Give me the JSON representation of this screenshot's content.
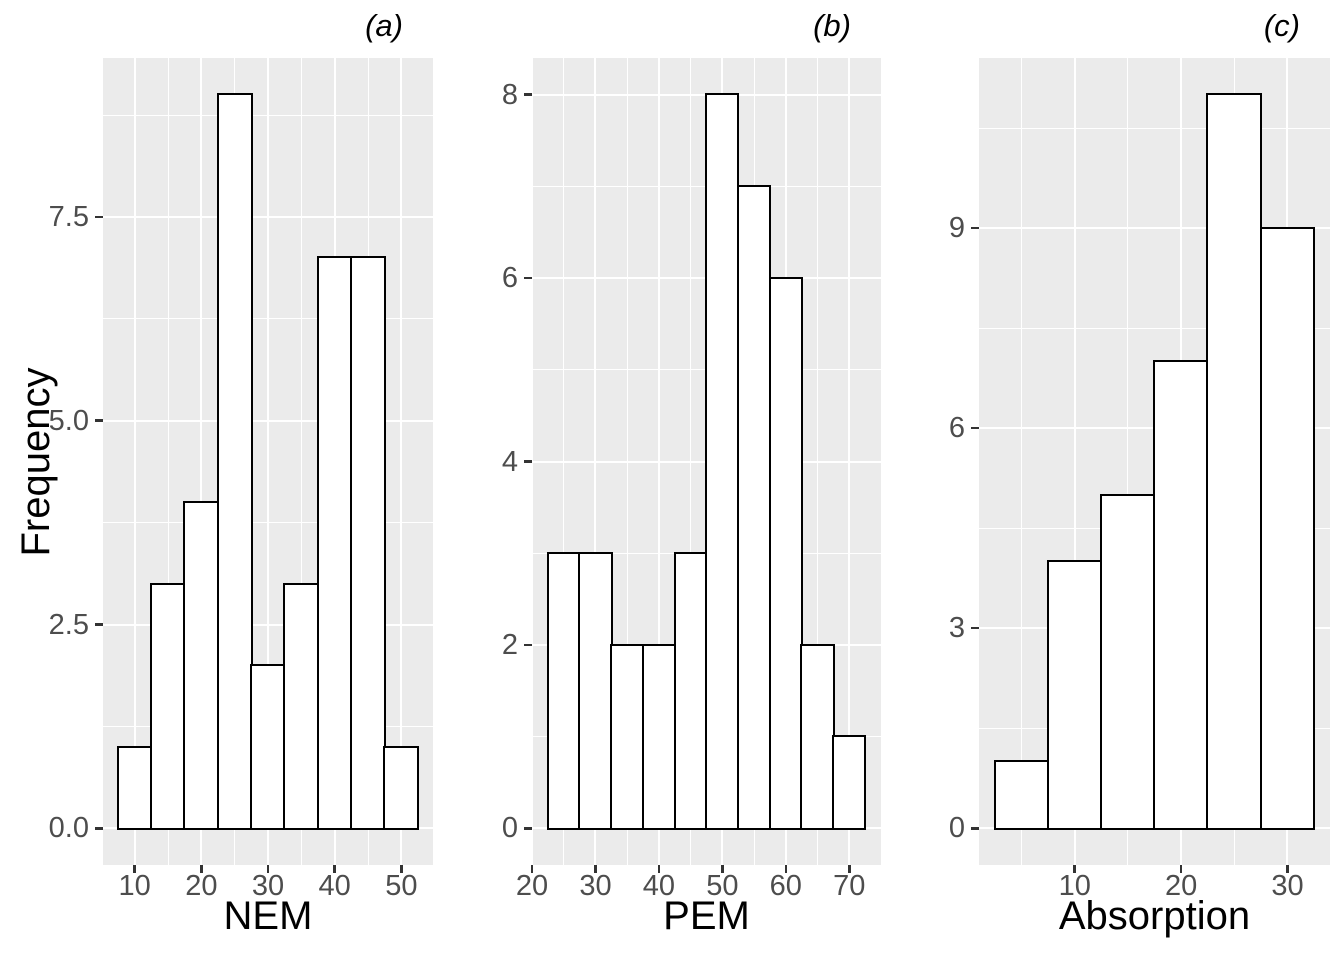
{
  "figure": {
    "ylabel": "Frequency",
    "colors": {
      "panel_background": "#EBEBEB",
      "grid": "#FFFFFF",
      "bar_fill": "#FFFFFF",
      "bar_stroke": "#000000",
      "tick_mark": "#333333",
      "tick_text": "#4D4D4D",
      "title_text": "#000000"
    }
  },
  "chart_data": [
    {
      "type": "bar",
      "subtype": "histogram",
      "title": "(a)",
      "xlabel": "NEM",
      "ylabel": "Frequency",
      "bin_start": 7.5,
      "bin_width": 5,
      "counts": [
        1,
        3,
        4,
        9,
        2,
        3,
        7,
        7,
        1
      ],
      "x_ticks": [
        10,
        20,
        30,
        40,
        50
      ],
      "x_tick_labels": [
        "10",
        "20",
        "30",
        "40",
        "50"
      ],
      "y_ticks": [
        0,
        2.5,
        5,
        7.5
      ],
      "y_tick_labels": [
        "0.0",
        "2.5",
        "5.0",
        "7.5"
      ],
      "xlim": [
        5.25,
        54.75
      ],
      "ylim": [
        -0.45,
        9.45
      ],
      "grid": true,
      "legend": false
    },
    {
      "type": "bar",
      "subtype": "histogram",
      "title": "(b)",
      "xlabel": "PEM",
      "ylabel": "",
      "bin_start": 22.5,
      "bin_width": 5,
      "counts": [
        3,
        3,
        2,
        2,
        3,
        8,
        7,
        6,
        2,
        1
      ],
      "x_ticks": [
        20,
        30,
        40,
        50,
        60,
        70
      ],
      "x_tick_labels": [
        "20",
        "30",
        "40",
        "50",
        "60",
        "70"
      ],
      "y_ticks": [
        0,
        2,
        4,
        6,
        8
      ],
      "y_tick_labels": [
        "0",
        "2",
        "4",
        "6",
        "8"
      ],
      "xlim": [
        20,
        75
      ],
      "ylim": [
        -0.4,
        8.4
      ],
      "grid": true,
      "legend": false
    },
    {
      "type": "bar",
      "subtype": "histogram",
      "title": "(c)",
      "xlabel": "Absorption",
      "ylabel": "",
      "bin_start": 2.5,
      "bin_width": 5,
      "counts": [
        1,
        4,
        5,
        7,
        11,
        9
      ],
      "x_ticks": [
        10,
        20,
        30
      ],
      "x_tick_labels": [
        "10",
        "20",
        "30"
      ],
      "y_ticks": [
        0,
        3,
        6,
        9
      ],
      "y_tick_labels": [
        "0",
        "3",
        "6",
        "9"
      ],
      "xlim": [
        1,
        34
      ],
      "ylim": [
        -0.55,
        11.55
      ],
      "grid": true,
      "legend": false
    }
  ]
}
